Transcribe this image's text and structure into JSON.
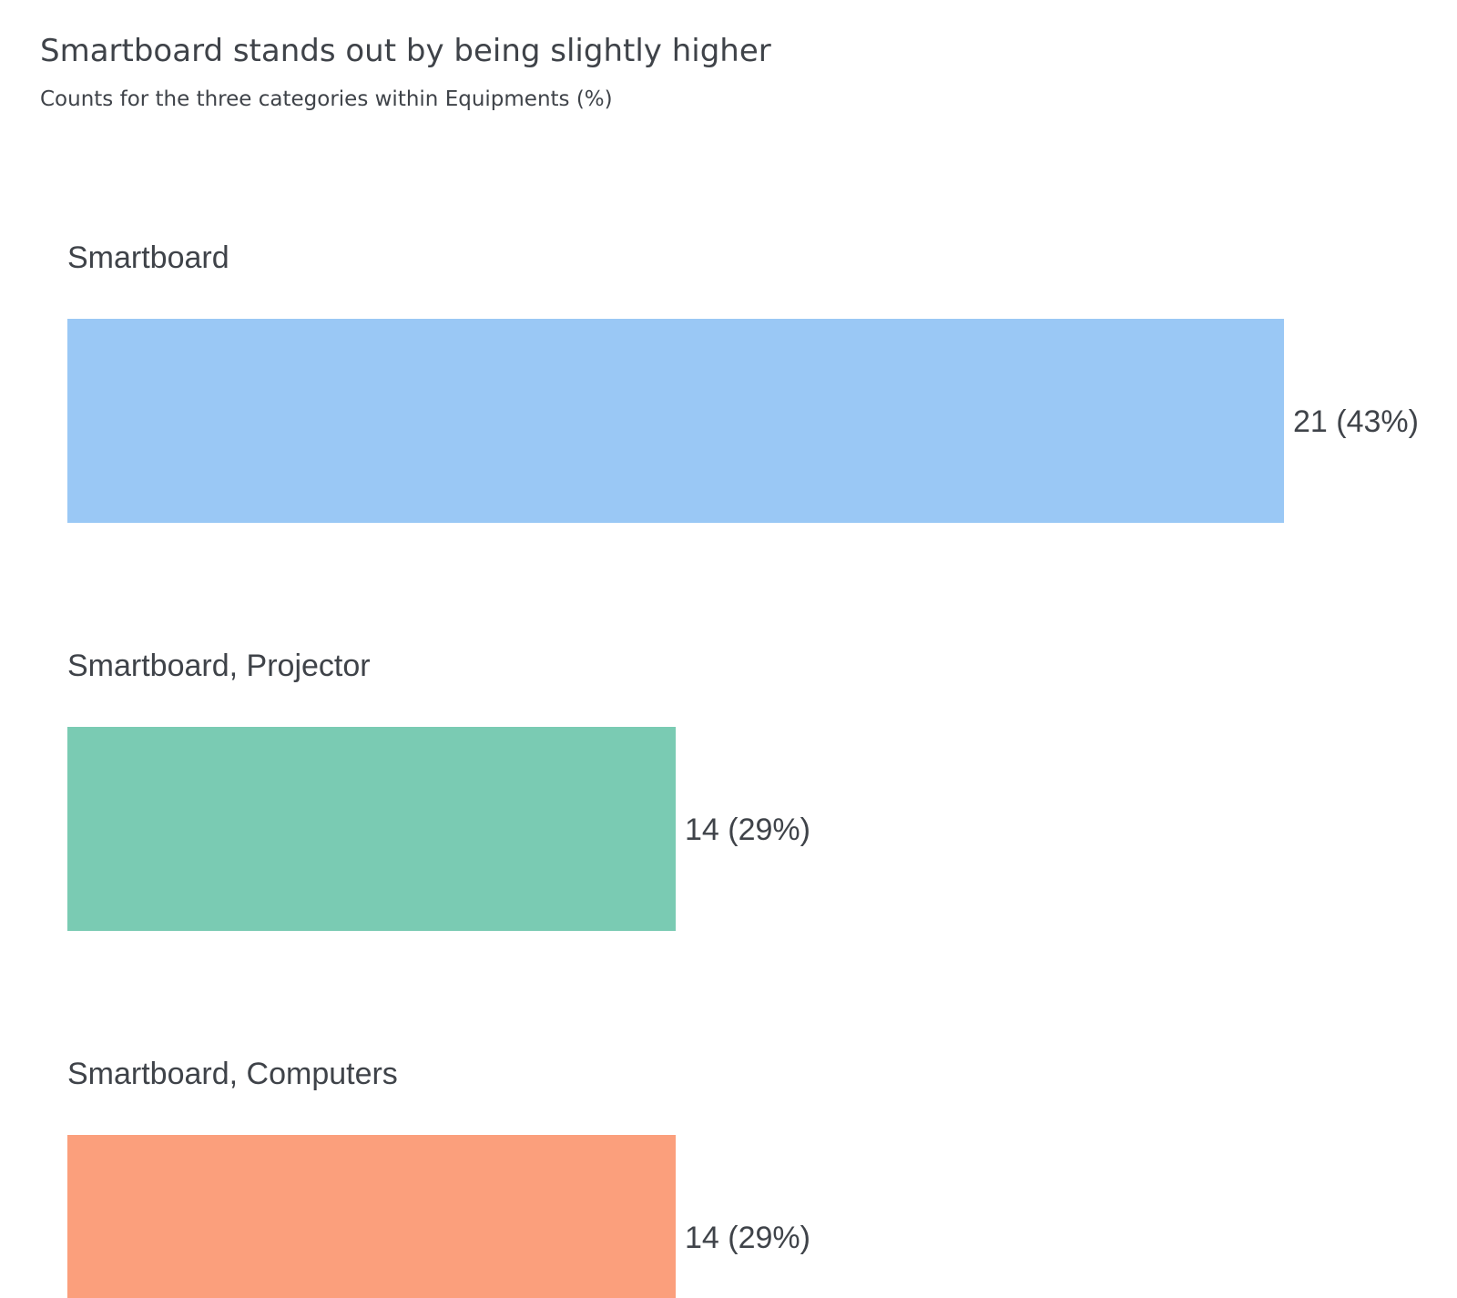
{
  "title": "Smartboard stands out by being slightly higher",
  "subtitle": "Counts for the three categories within Equipments (%)",
  "chart_data": {
    "type": "bar",
    "orientation": "horizontal",
    "categories": [
      "Smartboard",
      "Smartboard, Projector",
      "Smartboard, Computers"
    ],
    "values": [
      21,
      14,
      14
    ],
    "percentages": [
      43,
      29,
      29
    ],
    "value_labels": [
      "21 (43%)",
      "14 (29%)",
      "14 (29%)"
    ],
    "colors": [
      "#9ac8f5",
      "#7acbb3",
      "#fb9f7c"
    ],
    "xlim": [
      7,
      21
    ],
    "grid": false,
    "legend": "none"
  }
}
